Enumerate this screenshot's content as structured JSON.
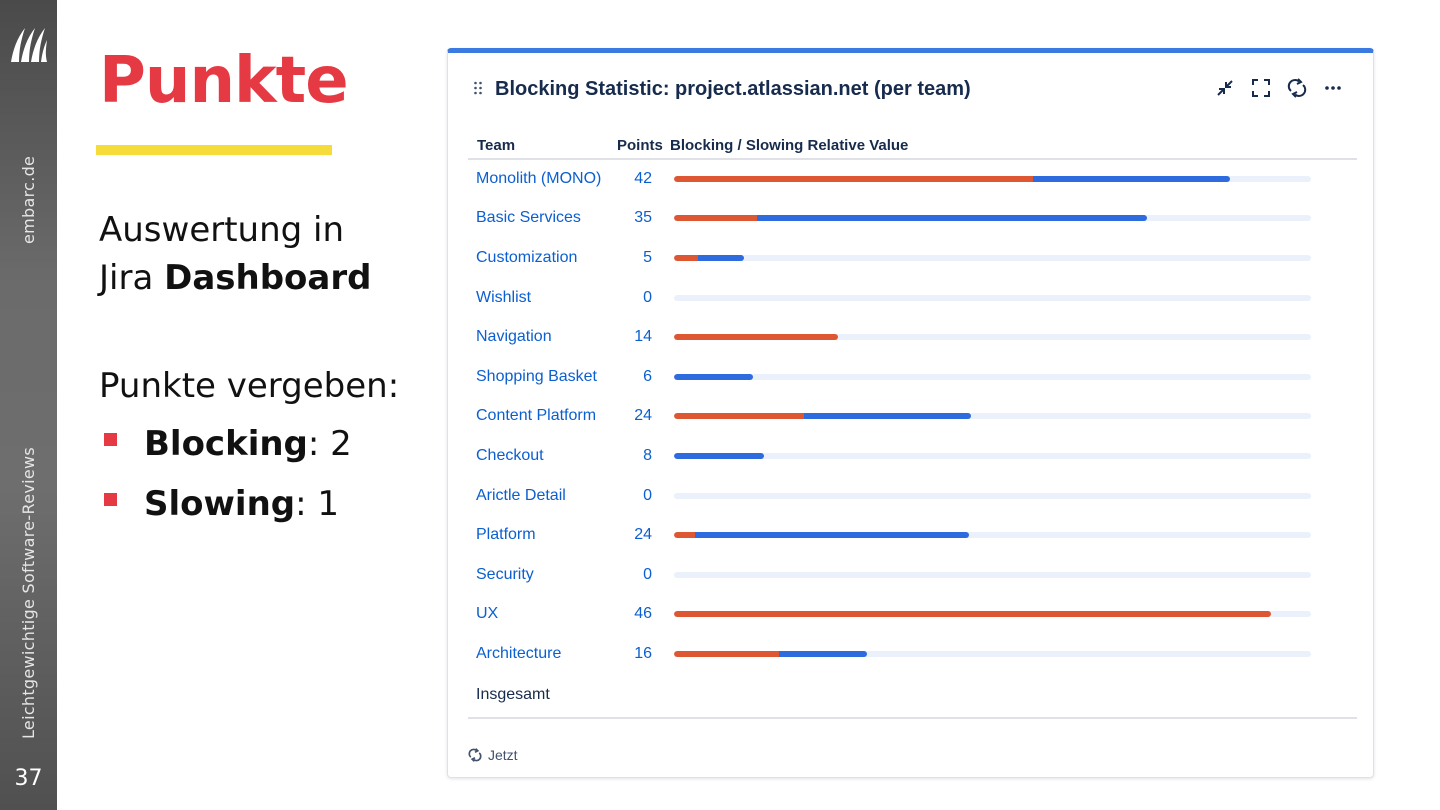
{
  "slide": {
    "title": "Punkte",
    "number": "37",
    "site": "embarc.de",
    "tagline": "Leichtgewichtige Software-Reviews",
    "para1_line1": "Auswertung in",
    "para1_line2_plain": "Jira ",
    "para1_line2_bold": "Dashboard",
    "para2": "Punkte vergeben:",
    "bullets": [
      {
        "bold": "Blocking",
        "rest": ": 2"
      },
      {
        "bold": "Slowing",
        "rest": ": 1"
      }
    ],
    "accent_color": "#e53a44",
    "underline_color": "#f5dc3a"
  },
  "gadget": {
    "title": "Blocking Statistic: project.atlassian.net (per team)",
    "columns": [
      "Team",
      "Points",
      "Blocking / Slowing Relative Value"
    ],
    "colors": {
      "blocking": "#de5733",
      "slowing": "#2d6bde",
      "track": "#ebf1fb",
      "header_bar": "#3b7ae0"
    },
    "max_points": 46,
    "rows": [
      {
        "team": "Monolith (MONO)",
        "points": "42",
        "blocking_fraction": 0.564,
        "slowing_fraction": 0.309
      },
      {
        "team": "Basic Services",
        "points": "35",
        "blocking_fraction": 0.13,
        "slowing_fraction": 0.612
      },
      {
        "team": "Customization",
        "points": "5",
        "blocking_fraction": 0.038,
        "slowing_fraction": 0.072
      },
      {
        "team": "Wishlist",
        "points": "0",
        "blocking_fraction": 0,
        "slowing_fraction": 0
      },
      {
        "team": "Navigation",
        "points": "14",
        "blocking_fraction": 0.257,
        "slowing_fraction": 0
      },
      {
        "team": "Shopping Basket",
        "points": "6",
        "blocking_fraction": 0,
        "slowing_fraction": 0.124
      },
      {
        "team": "Content Platform",
        "points": "24",
        "blocking_fraction": 0.204,
        "slowing_fraction": 0.262
      },
      {
        "team": "Checkout",
        "points": "8",
        "blocking_fraction": 0,
        "slowing_fraction": 0.141
      },
      {
        "team": "Arictle Detail",
        "points": "0",
        "blocking_fraction": 0,
        "slowing_fraction": 0
      },
      {
        "team": "Platform",
        "points": "24",
        "blocking_fraction": 0.033,
        "slowing_fraction": 0.43
      },
      {
        "team": "Security",
        "points": "0",
        "blocking_fraction": 0,
        "slowing_fraction": 0
      },
      {
        "team": "UX",
        "points": "46",
        "blocking_fraction": 0.937,
        "slowing_fraction": 0
      },
      {
        "team": "Architecture",
        "points": "16",
        "blocking_fraction": 0.165,
        "slowing_fraction": 0.138
      }
    ],
    "total_label": "Insgesamt",
    "refresh_label": "Jetzt",
    "icons": [
      "drag-handle-icon",
      "minimize-icon",
      "fullscreen-icon",
      "refresh-icon",
      "more-icon"
    ]
  }
}
